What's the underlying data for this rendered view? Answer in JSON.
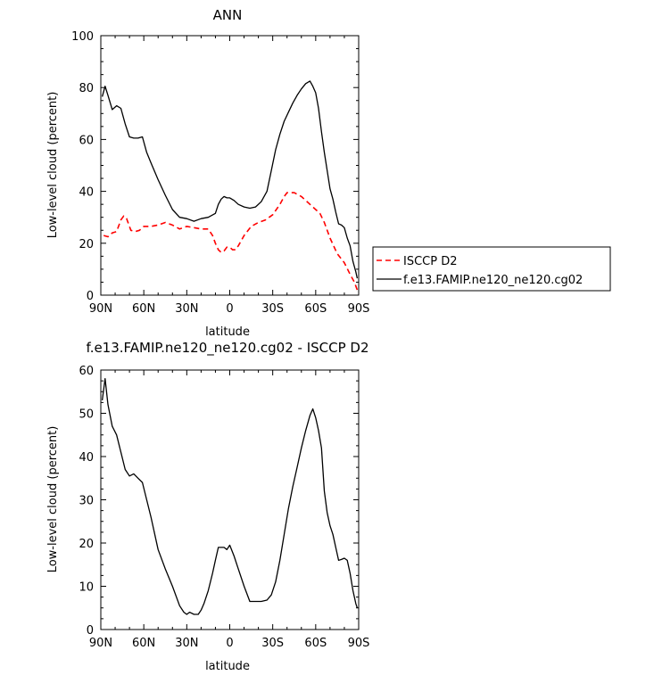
{
  "chart_data": [
    {
      "type": "line",
      "title": "ANN",
      "xlabel": "latitude",
      "ylabel": "Low-level cloud (percent)",
      "xlim": [
        90,
        -90
      ],
      "ylim": [
        0,
        100
      ],
      "x_ticks": [
        90,
        60,
        30,
        0,
        -30,
        -60,
        -90
      ],
      "x_tick_labels": [
        "90N",
        "60N",
        "30N",
        "0",
        "30S",
        "60S",
        "90S"
      ],
      "y_ticks": [
        0,
        20,
        40,
        60,
        80,
        100
      ],
      "legend_position": "right",
      "series": [
        {
          "name": "ISCCP D2",
          "color": "#ff0000",
          "dash": "dashed",
          "x": [
            88,
            85,
            82,
            79,
            76,
            74,
            72,
            69,
            66,
            63,
            60,
            55,
            50,
            45,
            40,
            35,
            30,
            25,
            20,
            15,
            12,
            10,
            8,
            6,
            4,
            2,
            0,
            -2,
            -4,
            -6,
            -10,
            -15,
            -20,
            -25,
            -30,
            -35,
            -38,
            -40,
            -45,
            -50,
            -55,
            -60,
            -63,
            -66,
            -70,
            -75,
            -80,
            -84,
            -87,
            -89
          ],
          "values": [
            23,
            22.5,
            24,
            24.5,
            29,
            30.5,
            29.5,
            25,
            24.5,
            25,
            26.5,
            26.5,
            27,
            28,
            27,
            25.5,
            26.5,
            26,
            25.5,
            25.5,
            23,
            20,
            17.5,
            16.5,
            17,
            18.5,
            18.5,
            17.5,
            17.5,
            19,
            23,
            26.5,
            28,
            29,
            31,
            35,
            38,
            39.5,
            39.5,
            38,
            35.5,
            33,
            31.5,
            28,
            22,
            16,
            12.5,
            8,
            5,
            2
          ]
        },
        {
          "name": "f.e13.FAMIP.ne120_ne120.cg02",
          "color": "#000000",
          "dash": "solid",
          "x": [
            89,
            87,
            85,
            82,
            79,
            76,
            73,
            70,
            67,
            64,
            61,
            58,
            55,
            50,
            45,
            40,
            35,
            30,
            25,
            20,
            15,
            10,
            8,
            6,
            4,
            2,
            0,
            -3,
            -6,
            -10,
            -14,
            -18,
            -22,
            -26,
            -29,
            -32,
            -35,
            -38,
            -41,
            -44,
            -47,
            -50,
            -53,
            -56,
            -58,
            -60,
            -62,
            -64,
            -66,
            -68,
            -70,
            -72,
            -74,
            -76,
            -78,
            -80,
            -82,
            -84,
            -86,
            -88,
            -89
          ],
          "values": [
            76.5,
            80.5,
            77,
            71.5,
            73,
            72,
            66,
            61,
            60.5,
            60.5,
            61,
            55,
            51,
            44.5,
            38.5,
            33,
            30,
            29.5,
            28.5,
            29.5,
            30,
            31.5,
            35,
            37,
            38,
            37.5,
            37.5,
            36.5,
            35,
            34,
            33.5,
            34,
            36,
            40,
            48,
            56,
            62,
            67,
            70.5,
            74,
            77,
            79.5,
            81.5,
            82.5,
            80.5,
            78,
            72,
            63,
            55,
            48,
            41,
            37,
            32,
            27.5,
            27,
            26,
            22,
            19,
            13,
            9,
            6.5
          ]
        }
      ]
    },
    {
      "type": "line",
      "title": "f.e13.FAMIP.ne120_ne120.cg02 - ISCCP D2",
      "xlabel": "latitude",
      "ylabel": "Low-level cloud (percent)",
      "xlim": [
        90,
        -90
      ],
      "ylim": [
        0,
        60
      ],
      "x_ticks": [
        90,
        60,
        30,
        0,
        -30,
        -60,
        -90
      ],
      "x_tick_labels": [
        "90N",
        "60N",
        "30N",
        "0",
        "30S",
        "60S",
        "90S"
      ],
      "y_ticks": [
        0,
        10,
        20,
        30,
        40,
        50,
        60
      ],
      "series": [
        {
          "color": "#000000",
          "dash": "solid",
          "x": [
            89,
            87,
            85,
            82,
            79,
            76,
            73,
            70,
            67,
            64,
            61,
            58,
            55,
            50,
            45,
            40,
            35,
            32,
            30,
            28,
            25,
            22,
            20,
            18,
            15,
            12,
            10,
            8,
            6,
            4,
            2,
            0,
            -3,
            -6,
            -10,
            -14,
            -18,
            -22,
            -26,
            -29,
            -32,
            -35,
            -38,
            -41,
            -44,
            -47,
            -50,
            -53,
            -56,
            -58,
            -60,
            -62,
            -64,
            -66,
            -68,
            -70,
            -72,
            -74,
            -76,
            -78,
            -80,
            -82,
            -84,
            -86,
            -88,
            -89
          ],
          "values": [
            53,
            58,
            52,
            47,
            45,
            41,
            37,
            35.5,
            36,
            35,
            34,
            30,
            26,
            18.5,
            14,
            10,
            5.5,
            4,
            3.5,
            4,
            3.5,
            3.5,
            4.5,
            6,
            9,
            13,
            16,
            19,
            19,
            19,
            18.5,
            19.5,
            17,
            14,
            10,
            6.5,
            6.5,
            6.5,
            6.8,
            8,
            11,
            16,
            22,
            28,
            33,
            37.5,
            42,
            46,
            49.5,
            51,
            49,
            46,
            42,
            32,
            27,
            24,
            22,
            19,
            16,
            16.2,
            16.5,
            16,
            13,
            9,
            6,
            5
          ]
        }
      ]
    }
  ]
}
